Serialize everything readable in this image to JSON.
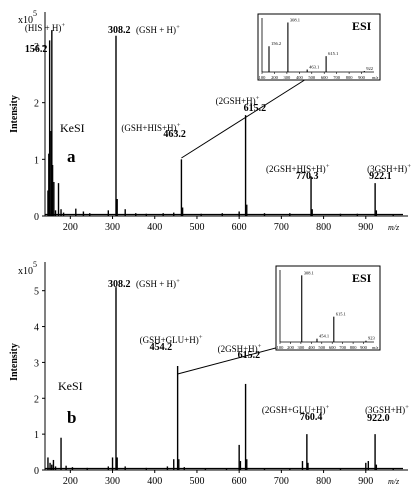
{
  "figure": {
    "colors": {
      "ink": "#000000",
      "background": "#ffffff"
    }
  },
  "chart_data": [
    {
      "id": "a",
      "type": "line",
      "panel_label": "a",
      "source_label": "KeSI",
      "xlabel": "m/z",
      "ylabel": "Intensity",
      "y_multiplier": "x10",
      "y_multiplier_exp": "5",
      "xlim": [
        140,
        1000
      ],
      "ylim": [
        0,
        3.6
      ],
      "xticks": [
        200,
        300,
        400,
        500,
        600,
        700,
        800,
        900
      ],
      "yticks": [
        0,
        1,
        2,
        3
      ],
      "peaks": [
        {
          "mz": 147,
          "y": 0.45
        },
        {
          "mz": 149,
          "y": 1.1
        },
        {
          "mz": 151,
          "y": 3.1
        },
        {
          "mz": 154,
          "y": 1.5
        },
        {
          "mz": 156.2,
          "y": 3.28
        },
        {
          "mz": 158,
          "y": 0.9
        },
        {
          "mz": 161,
          "y": 0.6
        },
        {
          "mz": 165,
          "y": 0.1
        },
        {
          "mz": 172,
          "y": 0.58
        },
        {
          "mz": 178,
          "y": 0.12
        },
        {
          "mz": 184,
          "y": 0.06
        },
        {
          "mz": 213,
          "y": 0.13
        },
        {
          "mz": 231,
          "y": 0.08
        },
        {
          "mz": 246,
          "y": 0.05
        },
        {
          "mz": 290,
          "y": 0.1
        },
        {
          "mz": 308.2,
          "y": 3.18
        },
        {
          "mz": 311,
          "y": 0.3
        },
        {
          "mz": 330,
          "y": 0.12
        },
        {
          "mz": 355,
          "y": 0.05
        },
        {
          "mz": 380,
          "y": 0.04
        },
        {
          "mz": 420,
          "y": 0.05
        },
        {
          "mz": 445,
          "y": 0.06
        },
        {
          "mz": 463.2,
          "y": 1.0
        },
        {
          "mz": 466,
          "y": 0.15
        },
        {
          "mz": 510,
          "y": 0.04
        },
        {
          "mz": 560,
          "y": 0.05
        },
        {
          "mz": 600,
          "y": 0.08
        },
        {
          "mz": 615.2,
          "y": 1.78
        },
        {
          "mz": 618,
          "y": 0.2
        },
        {
          "mz": 660,
          "y": 0.05
        },
        {
          "mz": 720,
          "y": 0.05
        },
        {
          "mz": 770.3,
          "y": 0.7
        },
        {
          "mz": 773,
          "y": 0.12
        },
        {
          "mz": 840,
          "y": 0.04
        },
        {
          "mz": 880,
          "y": 0.04
        },
        {
          "mz": 922.1,
          "y": 0.58
        },
        {
          "mz": 925,
          "y": 0.1
        },
        {
          "mz": 965,
          "y": 0.03
        }
      ],
      "annotations": [
        {
          "mz": 156.2,
          "value": "156.2",
          "label": "(HIS + H)+"
        },
        {
          "mz": 308.2,
          "value": "308.2",
          "label": "(GSH + H)+"
        },
        {
          "mz": 463.2,
          "value": "463.2",
          "label": "(GSH+HIS+H)+"
        },
        {
          "mz": 615.2,
          "value": "615.2",
          "label": "(2GSH+H)+"
        },
        {
          "mz": 770.3,
          "value": "770.3",
          "label": "(2GSH+HIS+H)+"
        },
        {
          "mz": 922.1,
          "value": "922.1",
          "label": "(3GSH+H)+"
        }
      ],
      "inset": {
        "title": "ESI",
        "xlabel": "m/z",
        "xlim": [
          100,
          1000
        ],
        "xticks": [
          100,
          200,
          300,
          400,
          500,
          600,
          700,
          800,
          900
        ],
        "ylim": [
          0,
          1.05
        ],
        "peaks": [
          {
            "mz": 156.2,
            "y": 0.52,
            "label": "156.2"
          },
          {
            "mz": 308.1,
            "y": 1.0,
            "label": "308.1"
          },
          {
            "mz": 463.1,
            "y": 0.05,
            "label": "463.1"
          },
          {
            "mz": 615.1,
            "y": 0.32,
            "label": "615.1"
          },
          {
            "mz": 922,
            "y": 0.02,
            "label": "922"
          }
        ]
      }
    },
    {
      "id": "b",
      "type": "line",
      "panel_label": "b",
      "source_label": "KeSI",
      "xlabel": "m/z",
      "ylabel": "Intensity",
      "y_multiplier": "x10",
      "y_multiplier_exp": "5",
      "xlim": [
        140,
        1000
      ],
      "ylim": [
        0,
        5.8
      ],
      "xticks": [
        200,
        300,
        400,
        500,
        600,
        700,
        800,
        900
      ],
      "yticks": [
        0,
        1,
        2,
        3,
        4,
        5
      ],
      "peaks": [
        {
          "mz": 147,
          "y": 0.35
        },
        {
          "mz": 152,
          "y": 0.2
        },
        {
          "mz": 156,
          "y": 0.15
        },
        {
          "mz": 160,
          "y": 0.28
        },
        {
          "mz": 165,
          "y": 0.1
        },
        {
          "mz": 178,
          "y": 0.9
        },
        {
          "mz": 190,
          "y": 0.12
        },
        {
          "mz": 205,
          "y": 0.08
        },
        {
          "mz": 240,
          "y": 0.06
        },
        {
          "mz": 290,
          "y": 0.1
        },
        {
          "mz": 300,
          "y": 0.35
        },
        {
          "mz": 308.2,
          "y": 5.1
        },
        {
          "mz": 311,
          "y": 0.35
        },
        {
          "mz": 330,
          "y": 0.1
        },
        {
          "mz": 380,
          "y": 0.06
        },
        {
          "mz": 430,
          "y": 0.1
        },
        {
          "mz": 445,
          "y": 0.3
        },
        {
          "mz": 454.2,
          "y": 2.9
        },
        {
          "mz": 457,
          "y": 0.3
        },
        {
          "mz": 470,
          "y": 0.08
        },
        {
          "mz": 520,
          "y": 0.05
        },
        {
          "mz": 570,
          "y": 0.05
        },
        {
          "mz": 600,
          "y": 0.7
        },
        {
          "mz": 603,
          "y": 0.25
        },
        {
          "mz": 615.2,
          "y": 2.4
        },
        {
          "mz": 618,
          "y": 0.3
        },
        {
          "mz": 660,
          "y": 0.05
        },
        {
          "mz": 720,
          "y": 0.05
        },
        {
          "mz": 750,
          "y": 0.25
        },
        {
          "mz": 760.4,
          "y": 1.0
        },
        {
          "mz": 763,
          "y": 0.2
        },
        {
          "mz": 840,
          "y": 0.04
        },
        {
          "mz": 900,
          "y": 0.2
        },
        {
          "mz": 906,
          "y": 0.25
        },
        {
          "mz": 922.0,
          "y": 1.0
        },
        {
          "mz": 925,
          "y": 0.15
        },
        {
          "mz": 965,
          "y": 0.03
        }
      ],
      "annotations": [
        {
          "mz": 308.2,
          "value": "308.2",
          "label": "(GSH + H)+"
        },
        {
          "mz": 454.2,
          "value": "454.2",
          "label": "(GSH+GLU+H)+"
        },
        {
          "mz": 615.2,
          "value": "615.2",
          "label": "(2GSH+H)+"
        },
        {
          "mz": 760.4,
          "value": "760.4",
          "label": "(2GSH+GLU+H)+"
        },
        {
          "mz": 922.0,
          "value": "922.0",
          "label": "(3GSH+H)+"
        }
      ],
      "inset": {
        "title": "ESI",
        "xlabel": "m/z",
        "xlim": [
          100,
          1000
        ],
        "xticks": [
          100,
          200,
          300,
          400,
          500,
          600,
          700,
          800,
          900
        ],
        "ylim": [
          0,
          1.05
        ],
        "peaks": [
          {
            "mz": 308.1,
            "y": 1.0,
            "label": "308.1"
          },
          {
            "mz": 454.1,
            "y": 0.05,
            "label": "454.1"
          },
          {
            "mz": 615.1,
            "y": 0.38,
            "label": "615.1"
          },
          {
            "mz": 923,
            "y": 0.02,
            "label": "923"
          }
        ]
      }
    }
  ]
}
